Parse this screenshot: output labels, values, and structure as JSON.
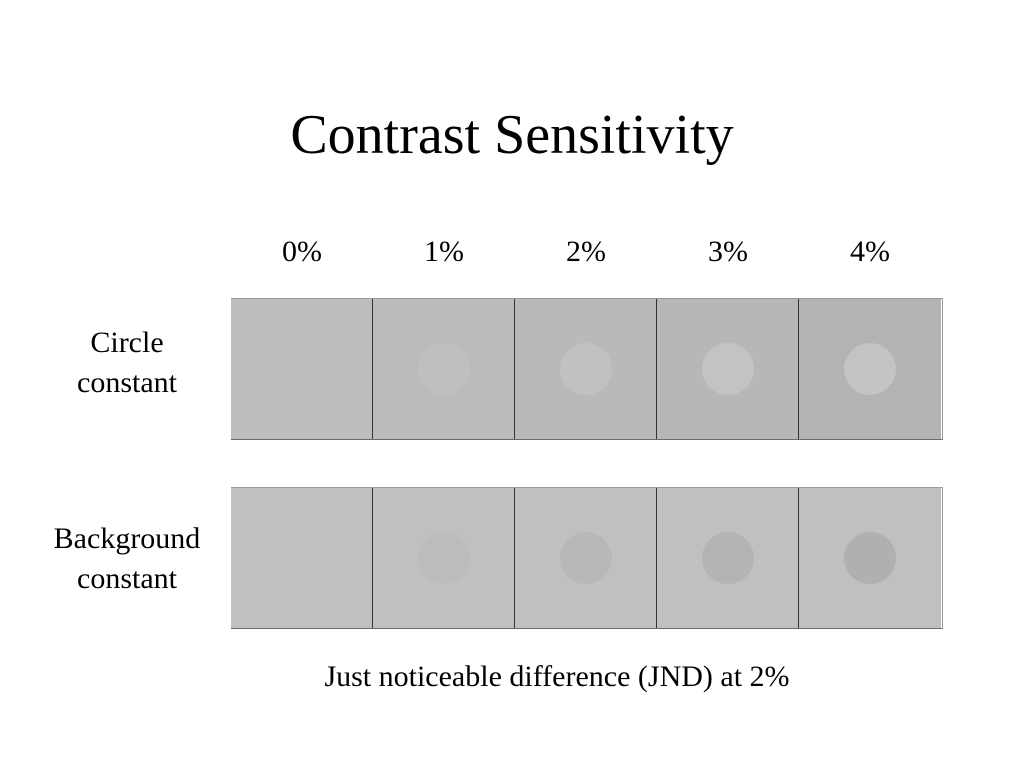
{
  "title": "Contrast Sensitivity",
  "columns": [
    "0%",
    "1%",
    "2%",
    "3%",
    "4%"
  ],
  "rows": [
    {
      "label_lines": [
        "Circle",
        "constant"
      ],
      "cells": [
        {
          "background": "#bdbdbd",
          "circle": "#bdbdbd"
        },
        {
          "background": "#bbbbbb",
          "circle": "#bfbfbf"
        },
        {
          "background": "#b9b9b9",
          "circle": "#c1c1c1"
        },
        {
          "background": "#b7b7b7",
          "circle": "#c3c3c3"
        },
        {
          "background": "#b3b3b3",
          "circle": "#c3c3c3"
        }
      ]
    },
    {
      "label_lines": [
        "Background",
        "constant"
      ],
      "cells": [
        {
          "background": "#c0c0c0",
          "circle": "#c0c0c0"
        },
        {
          "background": "#c0c0c0",
          "circle": "#bcbcbc"
        },
        {
          "background": "#c0c0c0",
          "circle": "#b8b8b8"
        },
        {
          "background": "#c0c0c0",
          "circle": "#b4b4b4"
        },
        {
          "background": "#c0c0c0",
          "circle": "#b0b0b0"
        }
      ]
    }
  ],
  "caption": "Just noticeable difference (JND) at 2%"
}
